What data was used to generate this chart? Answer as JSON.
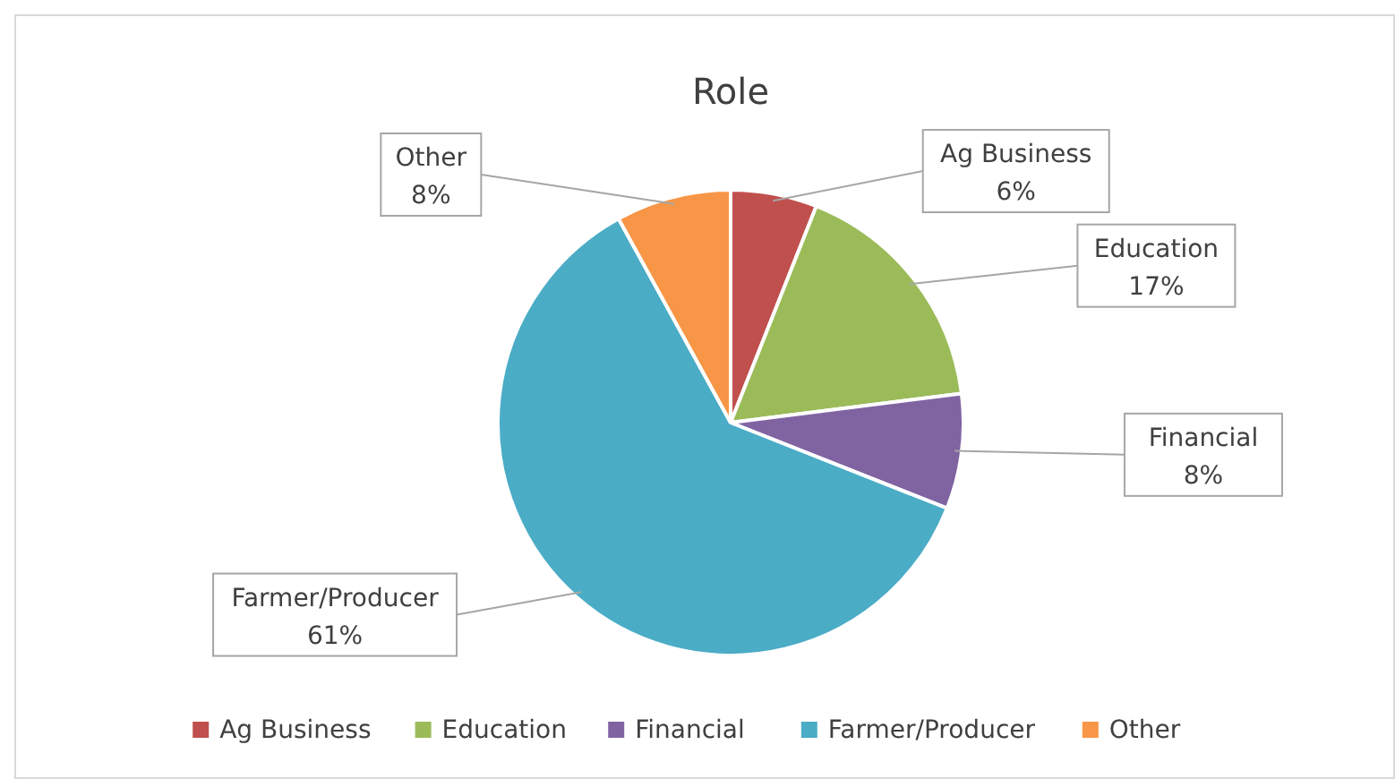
{
  "chart_data": {
    "type": "pie",
    "title": "Role",
    "categories": [
      "Ag Business",
      "Education",
      "Financial",
      "Farmer/Producer",
      "Other"
    ],
    "values": [
      6,
      17,
      8,
      61,
      8
    ],
    "value_labels": [
      "6%",
      "17%",
      "8%",
      "61%",
      "8%"
    ],
    "colors": [
      "#c0504d",
      "#9bbb59",
      "#8064a2",
      "#4bacc6",
      "#f79646"
    ],
    "legend": "bottom"
  }
}
